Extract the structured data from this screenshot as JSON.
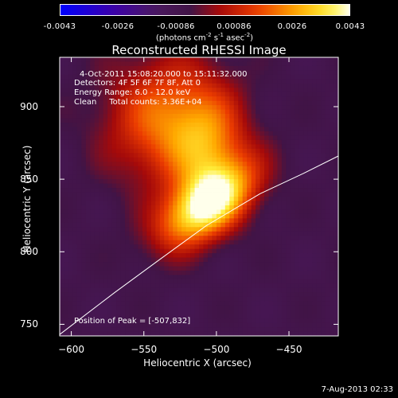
{
  "colorbar": {
    "ticks": [
      "-0.0043",
      "-0.0026",
      "-0.00086",
      "0.00086",
      "0.0026",
      "0.0043"
    ],
    "unit_main": "(photons cm",
    "unit_exp1": "-2",
    "unit_mid": " s",
    "unit_exp2": "-1",
    "unit_mid2": " asec",
    "unit_exp3": "-2",
    "unit_end": ")"
  },
  "header": {
    "title": "Reconstructed RHESSI Image"
  },
  "info": {
    "line1": "4-Oct-2011 15:08:20.000 to 15:11:32.000",
    "line2": "Detectors: 4F 5F 6F 7F 8F, Att 0",
    "line3": "Energy Range: 6.0 - 12.0 keV",
    "line4": "Clean     Total counts: 3.36E+04",
    "peak": "Position of Peak = [-507,832]"
  },
  "footer": {
    "date": "7-Aug-2013 02:33"
  },
  "chart_data": {
    "type": "heatmap",
    "title": "Reconstructed RHESSI Image",
    "xlabel": "Heliocentric X (arcsec)",
    "ylabel": "Heliocentric Y (arcsec)",
    "xlim": [
      -608,
      -416
    ],
    "ylim": [
      742,
      934
    ],
    "xticks": [
      -600,
      -550,
      -500,
      -450
    ],
    "yticks": [
      750,
      800,
      850,
      900
    ],
    "xtick_labels": [
      "−600",
      "−550",
      "−500",
      "−450"
    ],
    "ytick_labels": [
      "750",
      "800",
      "850",
      "900"
    ],
    "colormap": "hot (blue-purple-red-yellow-white)",
    "color_range": [
      -0.0043,
      0.0043
    ],
    "peak": [
      -507,
      832
    ],
    "limb_curve": [
      [
        -608,
        743
      ],
      [
        -570,
        772
      ],
      [
        -540,
        794
      ],
      [
        -507,
        818
      ],
      [
        -470,
        840
      ],
      [
        -440,
        854
      ],
      [
        -416,
        866
      ]
    ]
  },
  "colors": {
    "background": "#000000",
    "text": "#ffffff",
    "limb": "#ffffff"
  }
}
